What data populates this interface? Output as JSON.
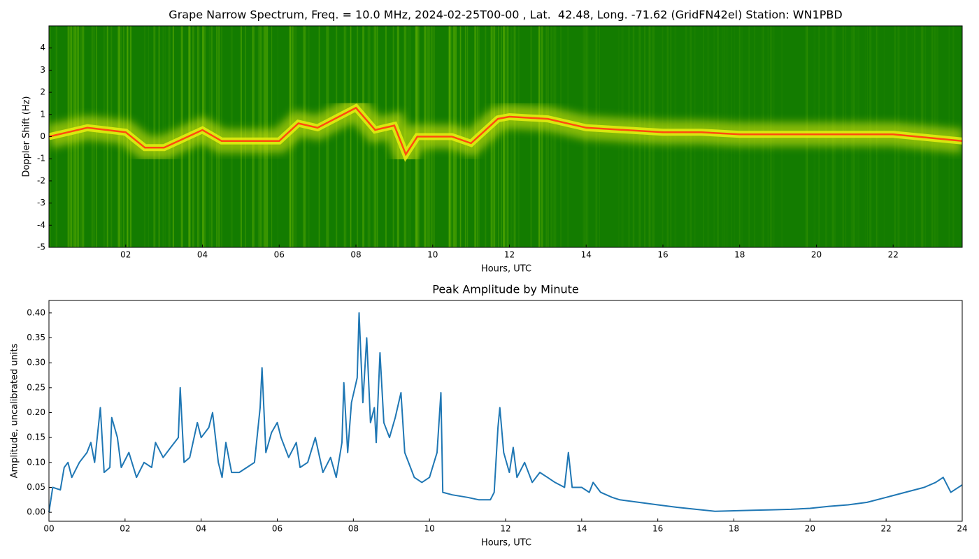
{
  "chart_data": [
    {
      "type": "spectrogram",
      "title": "Grape Narrow Spectrum, Freq. = 10.0 MHz, 2024-02-25T00-00 , Lat.  42.48, Long. -71.62 (GridFN42el) Station: WN1PBD",
      "x_label": "Hours, UTC",
      "y_label": "Doppler Shift (Hz)",
      "xlim": [
        0,
        23.8
      ],
      "ylim": [
        -5,
        5
      ],
      "xticks": [
        {
          "value": 2,
          "label": "02"
        },
        {
          "value": 4,
          "label": "04"
        },
        {
          "value": 6,
          "label": "06"
        },
        {
          "value": 8,
          "label": "08"
        },
        {
          "value": 10,
          "label": "10"
        },
        {
          "value": 12,
          "label": "12"
        },
        {
          "value": 14,
          "label": "14"
        },
        {
          "value": 16,
          "label": "16"
        },
        {
          "value": 18,
          "label": "18"
        },
        {
          "value": 20,
          "label": "20"
        },
        {
          "value": 22,
          "label": "22"
        }
      ],
      "yticks": [
        -5,
        -4,
        -3,
        -2,
        -1,
        0,
        1,
        2,
        3,
        4
      ],
      "background_color": "#137c00",
      "band_color": "#e6ee10",
      "color": "#ff4a10",
      "x": [
        0,
        0.5,
        1,
        2,
        2.5,
        3,
        4,
        4.5,
        5,
        6,
        6.5,
        7,
        8,
        8.5,
        9,
        9.3,
        9.6,
        10,
        10.5,
        11,
        11.7,
        12,
        13,
        14,
        15,
        16,
        17,
        18,
        20,
        22,
        23.8
      ],
      "values": [
        0,
        0.2,
        0.4,
        0.2,
        -0.5,
        -0.5,
        0.3,
        -0.2,
        -0.2,
        -0.2,
        0.6,
        0.4,
        1.3,
        0.3,
        0.5,
        -0.8,
        0,
        0,
        0,
        -0.3,
        0.8,
        0.9,
        0.8,
        0.4,
        0.3,
        0.2,
        0.2,
        0.1,
        0.1,
        0.1,
        -0.2
      ]
    },
    {
      "type": "line",
      "title": "Peak Amplitude by Minute",
      "x_label": "Hours, UTC",
      "y_label": "Amplitude, uncalibrated units",
      "xlim": [
        0,
        24
      ],
      "ylim": [
        -0.018,
        0.425
      ],
      "xticks": [
        {
          "value": 0,
          "label": "00"
        },
        {
          "value": 2,
          "label": "02"
        },
        {
          "value": 4,
          "label": "04"
        },
        {
          "value": 6,
          "label": "06"
        },
        {
          "value": 8,
          "label": "08"
        },
        {
          "value": 10,
          "label": "10"
        },
        {
          "value": 12,
          "label": "12"
        },
        {
          "value": 14,
          "label": "14"
        },
        {
          "value": 16,
          "label": "16"
        },
        {
          "value": 18,
          "label": "18"
        },
        {
          "value": 20,
          "label": "20"
        },
        {
          "value": 22,
          "label": "22"
        },
        {
          "value": 24,
          "label": "24"
        }
      ],
      "yticks": [
        {
          "value": 0,
          "label": "0.00"
        },
        {
          "value": 0.05,
          "label": "0.05"
        },
        {
          "value": 0.1,
          "label": "0.10"
        },
        {
          "value": 0.15,
          "label": "0.15"
        },
        {
          "value": 0.2,
          "label": "0.20"
        },
        {
          "value": 0.25,
          "label": "0.25"
        },
        {
          "value": 0.3,
          "label": "0.30"
        },
        {
          "value": 0.35,
          "label": "0.35"
        },
        {
          "value": 0.4,
          "label": "0.40"
        }
      ],
      "color": "#1f77b4",
      "x": [
        0,
        0.1,
        0.3,
        0.4,
        0.5,
        0.6,
        0.8,
        1.0,
        1.1,
        1.2,
        1.35,
        1.45,
        1.6,
        1.65,
        1.8,
        1.9,
        2.1,
        2.3,
        2.5,
        2.7,
        2.8,
        3.0,
        3.2,
        3.4,
        3.45,
        3.55,
        3.7,
        3.9,
        4.0,
        4.2,
        4.3,
        4.45,
        4.55,
        4.65,
        4.8,
        5.0,
        5.2,
        5.4,
        5.55,
        5.6,
        5.7,
        5.85,
        6.0,
        6.1,
        6.3,
        6.5,
        6.6,
        6.8,
        7.0,
        7.2,
        7.4,
        7.55,
        7.7,
        7.75,
        7.85,
        7.95,
        8.1,
        8.15,
        8.25,
        8.35,
        8.45,
        8.55,
        8.6,
        8.7,
        8.8,
        8.95,
        9.1,
        9.25,
        9.35,
        9.5,
        9.6,
        9.8,
        10.0,
        10.2,
        10.3,
        10.35,
        10.6,
        11.0,
        11.3,
        11.6,
        11.7,
        11.8,
        11.85,
        11.95,
        12.1,
        12.2,
        12.3,
        12.5,
        12.7,
        12.9,
        13.1,
        13.3,
        13.55,
        13.65,
        13.75,
        14.0,
        14.2,
        14.3,
        14.5,
        14.8,
        15.0,
        15.5,
        16.0,
        16.5,
        17.0,
        17.5,
        18.0,
        18.5,
        19.0,
        19.5,
        20.0,
        20.5,
        21.0,
        21.5,
        22.0,
        22.5,
        23.0,
        23.3,
        23.5,
        23.7,
        24.0
      ],
      "values": [
        0.0,
        0.05,
        0.045,
        0.09,
        0.1,
        0.07,
        0.1,
        0.12,
        0.14,
        0.1,
        0.21,
        0.08,
        0.09,
        0.19,
        0.15,
        0.09,
        0.12,
        0.07,
        0.1,
        0.09,
        0.14,
        0.11,
        0.13,
        0.15,
        0.25,
        0.1,
        0.11,
        0.18,
        0.15,
        0.17,
        0.2,
        0.1,
        0.07,
        0.14,
        0.08,
        0.08,
        0.09,
        0.1,
        0.21,
        0.29,
        0.12,
        0.16,
        0.18,
        0.15,
        0.11,
        0.14,
        0.09,
        0.1,
        0.15,
        0.08,
        0.11,
        0.07,
        0.14,
        0.26,
        0.12,
        0.22,
        0.27,
        0.4,
        0.22,
        0.35,
        0.18,
        0.21,
        0.14,
        0.32,
        0.18,
        0.15,
        0.19,
        0.24,
        0.12,
        0.09,
        0.07,
        0.06,
        0.07,
        0.12,
        0.24,
        0.04,
        0.035,
        0.03,
        0.025,
        0.025,
        0.04,
        0.17,
        0.21,
        0.12,
        0.08,
        0.13,
        0.07,
        0.1,
        0.06,
        0.08,
        0.07,
        0.06,
        0.05,
        0.12,
        0.05,
        0.05,
        0.04,
        0.06,
        0.04,
        0.03,
        0.025,
        0.02,
        0.015,
        0.01,
        0.006,
        0.002,
        0.003,
        0.004,
        0.005,
        0.006,
        0.008,
        0.012,
        0.015,
        0.02,
        0.03,
        0.04,
        0.05,
        0.06,
        0.07,
        0.04,
        0.055
      ]
    }
  ]
}
